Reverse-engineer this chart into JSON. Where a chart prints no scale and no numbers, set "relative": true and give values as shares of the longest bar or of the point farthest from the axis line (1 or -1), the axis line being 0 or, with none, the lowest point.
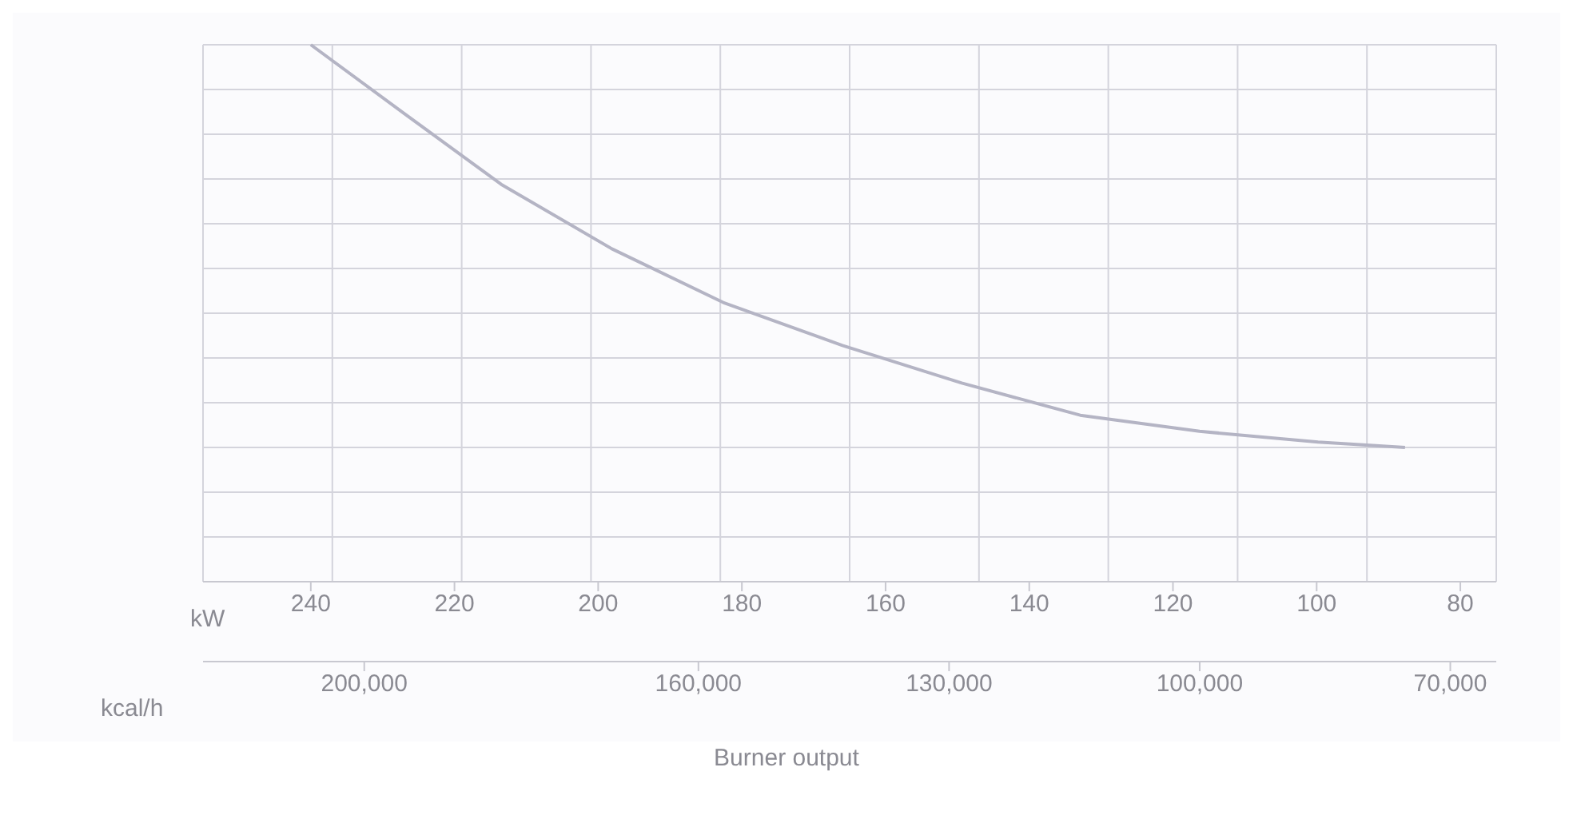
{
  "chart_data": {
    "type": "line",
    "xlabel": "kW",
    "x2label": "kcal/h",
    "annotations": [
      "Burner output"
    ],
    "relative": true,
    "grid": true,
    "marker": "none",
    "line_style": "solid",
    "x": [
      240,
      226.8,
      213.5,
      198.1,
      182.6,
      166,
      149.4,
      132.9,
      116.3,
      99.8,
      87.7
    ],
    "series": [
      {
        "color": "#b4b4c4",
        "values": [
          1,
          0.87,
          0.74,
          0.62,
          0.52,
          0.44,
          0.37,
          0.31,
          0.28,
          0.26,
          0.25
        ]
      }
    ],
    "xlim": [
      255,
      75
    ],
    "xticks": [
      80,
      100,
      120,
      140,
      160,
      180,
      200,
      220,
      240
    ],
    "x2lim": [
      219300,
      64500
    ],
    "x2ticks": [
      {
        "value": 70000,
        "label": "70,000"
      },
      {
        "value": 100000,
        "label": "100,000"
      },
      {
        "value": 130000,
        "label": "130,000"
      },
      {
        "value": 160000,
        "label": "160,000"
      },
      {
        "value": 200000,
        "label": "200,000"
      }
    ]
  }
}
